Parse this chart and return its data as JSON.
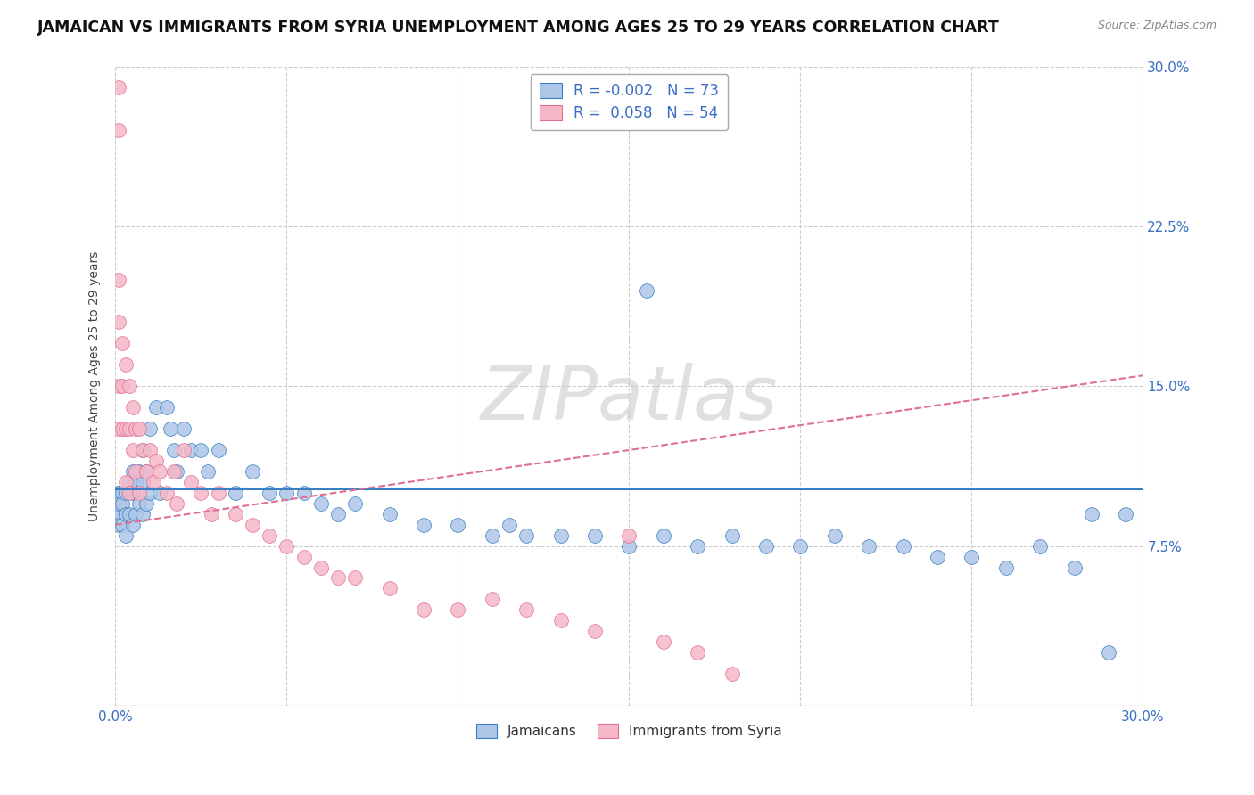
{
  "title": "JAMAICAN VS IMMIGRANTS FROM SYRIA UNEMPLOYMENT AMONG AGES 25 TO 29 YEARS CORRELATION CHART",
  "source": "Source: ZipAtlas.com",
  "ylabel": "Unemployment Among Ages 25 to 29 years",
  "xlim": [
    0.0,
    0.3
  ],
  "ylim": [
    0.0,
    0.3
  ],
  "xticks": [
    0.0,
    0.05,
    0.1,
    0.15,
    0.2,
    0.25,
    0.3
  ],
  "yticks": [
    0.0,
    0.075,
    0.15,
    0.225,
    0.3
  ],
  "legend_labels": [
    "Jamaicans",
    "Immigrants from Syria"
  ],
  "blue_R": "-0.002",
  "blue_N": "73",
  "pink_R": "0.058",
  "pink_N": "54",
  "blue_color": "#aec6e8",
  "pink_color": "#f5b8c8",
  "blue_line_color": "#3a7fc1",
  "pink_line_color": "#e07090",
  "blue_line_y": 0.102,
  "pink_line_start_y": 0.085,
  "pink_line_end_y": 0.155,
  "title_fontsize": 12.5,
  "source_fontsize": 9,
  "axis_fontsize": 10,
  "tick_fontsize": 11,
  "watermark": "ZIPatlas",
  "jamaican_x": [
    0.001,
    0.001,
    0.001,
    0.001,
    0.001,
    0.001,
    0.002,
    0.002,
    0.002,
    0.003,
    0.003,
    0.003,
    0.004,
    0.004,
    0.005,
    0.005,
    0.005,
    0.006,
    0.006,
    0.007,
    0.007,
    0.008,
    0.008,
    0.008,
    0.009,
    0.009,
    0.01,
    0.01,
    0.012,
    0.013,
    0.015,
    0.016,
    0.017,
    0.018,
    0.02,
    0.022,
    0.025,
    0.027,
    0.03,
    0.035,
    0.04,
    0.045,
    0.05,
    0.055,
    0.06,
    0.065,
    0.07,
    0.08,
    0.09,
    0.1,
    0.11,
    0.115,
    0.12,
    0.13,
    0.14,
    0.15,
    0.155,
    0.16,
    0.17,
    0.18,
    0.19,
    0.2,
    0.21,
    0.22,
    0.23,
    0.24,
    0.25,
    0.26,
    0.27,
    0.28,
    0.285,
    0.29,
    0.295
  ],
  "jamaican_y": [
    0.09,
    0.1,
    0.1,
    0.09,
    0.095,
    0.085,
    0.1,
    0.095,
    0.085,
    0.1,
    0.09,
    0.08,
    0.105,
    0.09,
    0.11,
    0.1,
    0.085,
    0.105,
    0.09,
    0.11,
    0.095,
    0.12,
    0.105,
    0.09,
    0.11,
    0.095,
    0.13,
    0.1,
    0.14,
    0.1,
    0.14,
    0.13,
    0.12,
    0.11,
    0.13,
    0.12,
    0.12,
    0.11,
    0.12,
    0.1,
    0.11,
    0.1,
    0.1,
    0.1,
    0.095,
    0.09,
    0.095,
    0.09,
    0.085,
    0.085,
    0.08,
    0.085,
    0.08,
    0.08,
    0.08,
    0.075,
    0.195,
    0.08,
    0.075,
    0.08,
    0.075,
    0.075,
    0.08,
    0.075,
    0.075,
    0.07,
    0.07,
    0.065,
    0.075,
    0.065,
    0.09,
    0.025,
    0.09
  ],
  "syria_x": [
    0.001,
    0.001,
    0.001,
    0.001,
    0.001,
    0.001,
    0.002,
    0.002,
    0.002,
    0.003,
    0.003,
    0.003,
    0.004,
    0.004,
    0.004,
    0.005,
    0.005,
    0.006,
    0.006,
    0.007,
    0.007,
    0.008,
    0.009,
    0.01,
    0.011,
    0.012,
    0.013,
    0.015,
    0.017,
    0.018,
    0.02,
    0.022,
    0.025,
    0.028,
    0.03,
    0.035,
    0.04,
    0.045,
    0.05,
    0.055,
    0.06,
    0.065,
    0.07,
    0.08,
    0.09,
    0.1,
    0.11,
    0.12,
    0.13,
    0.14,
    0.15,
    0.16,
    0.17,
    0.18
  ],
  "syria_y": [
    0.29,
    0.27,
    0.2,
    0.18,
    0.15,
    0.13,
    0.17,
    0.15,
    0.13,
    0.16,
    0.13,
    0.105,
    0.15,
    0.13,
    0.1,
    0.14,
    0.12,
    0.13,
    0.11,
    0.13,
    0.1,
    0.12,
    0.11,
    0.12,
    0.105,
    0.115,
    0.11,
    0.1,
    0.11,
    0.095,
    0.12,
    0.105,
    0.1,
    0.09,
    0.1,
    0.09,
    0.085,
    0.08,
    0.075,
    0.07,
    0.065,
    0.06,
    0.06,
    0.055,
    0.045,
    0.045,
    0.05,
    0.045,
    0.04,
    0.035,
    0.08,
    0.03,
    0.025,
    0.015
  ]
}
